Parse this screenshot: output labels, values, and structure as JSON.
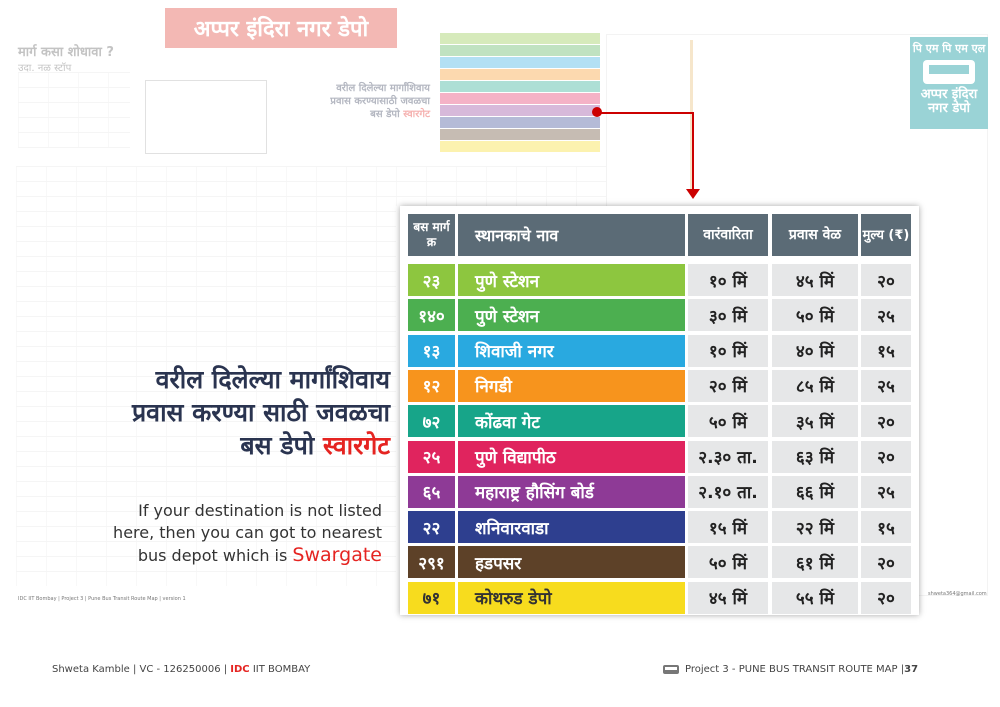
{
  "poster": {
    "title": "अप्पर इंदिरा नगर डेपो",
    "howto_title": "मार्ग कसा शोधावा ?",
    "howto_sub": "उदा. नळ स्टॉप",
    "side_note_line1": "वरील दिलेल्या मार्गांशिवाय",
    "side_note_line2": "प्रवास करण्यासाठी जवळचा",
    "side_note_line3": "बस डेपो",
    "side_note_highlight": "स्वारगेट",
    "depot_badge_top": "पि एम पि एम एल",
    "depot_badge_name": "अप्पर इंदिरा नगर डेपो"
  },
  "message_marathi": {
    "line1": "वरील दिलेल्या मार्गांशिवाय",
    "line2": "प्रवास करण्या साठी जवळचा",
    "line3_prefix": "बस डेपो ",
    "line3_highlight": "स्वारगेट"
  },
  "message_english": {
    "line1": "If your destination is not listed",
    "line2": "here, then you can got to nearest",
    "line3_prefix": "bus depot which is ",
    "line3_highlight": "Swargate"
  },
  "table": {
    "headers": {
      "route": "बस मार्ग क्र",
      "name": "स्थानकाचे नाव",
      "frequency": "वारंवारिता",
      "travel_time": "प्रवास वेळ",
      "fare": "मुल्य (₹)"
    },
    "rows": [
      {
        "route": "२३",
        "name": "पुणे स्टेशन",
        "frequency": "१० मिं",
        "travel_time": "४५ मिं",
        "fare": "२०",
        "color": "#8dc63f"
      },
      {
        "route": "१४०",
        "name": "पुणे स्टेशन",
        "frequency": "३० मिं",
        "travel_time": "५० मिं",
        "fare": "२५",
        "color": "#4caf50"
      },
      {
        "route": "१३",
        "name": "शिवाजी नगर",
        "frequency": "१० मिं",
        "travel_time": "४० मिं",
        "fare": "१५",
        "color": "#29a9e0"
      },
      {
        "route": "१२",
        "name": "निगडी",
        "frequency": "२० मिं",
        "travel_time": "८५ मिं",
        "fare": "२५",
        "color": "#f7941d"
      },
      {
        "route": "७२",
        "name": "कोंढवा गेट",
        "frequency": "५० मिं",
        "travel_time": "३५ मिं",
        "fare": "२०",
        "color": "#17a589"
      },
      {
        "route": "२५",
        "name": "पुणे विद्यापीठ",
        "frequency": "२.३० ता.",
        "travel_time": "६३ मिं",
        "fare": "२०",
        "color": "#e0245e"
      },
      {
        "route": "६५",
        "name": "महाराष्ट्र हौसिंग बोर्ड",
        "frequency": "२.१० ता.",
        "travel_time": "६६ मिं",
        "fare": "२५",
        "color": "#8e3a96"
      },
      {
        "route": "२२",
        "name": "शनिवारवाडा",
        "frequency": "१५ मिं",
        "travel_time": "२२ मिं",
        "fare": "१५",
        "color": "#2e3f8f"
      },
      {
        "route": "२९१",
        "name": "हडपसर",
        "frequency": "५० मिं",
        "travel_time": "६१ मिं",
        "fare": "२०",
        "color": "#5d4128"
      },
      {
        "route": "७१",
        "name": "कोथरुड डेपो",
        "frequency": "४५ मिं",
        "travel_time": "५५ मिं",
        "fare": "२०",
        "color": "#f7dc1e",
        "text_color": "#333333"
      }
    ]
  },
  "credits": {
    "left": "IDC IIT Bombay | Project 3 | Pune Bus Transit Route Map | version 1",
    "right": "shweta364@gmail.com"
  },
  "footer": {
    "author": "Shweta Kamble | VC - 126250006 | ",
    "idc": "IDC",
    "institute": " IIT BOMBAY",
    "project": "Project 3 - PUNE BUS TRANSIT ROUTE MAP | ",
    "page": "37"
  }
}
